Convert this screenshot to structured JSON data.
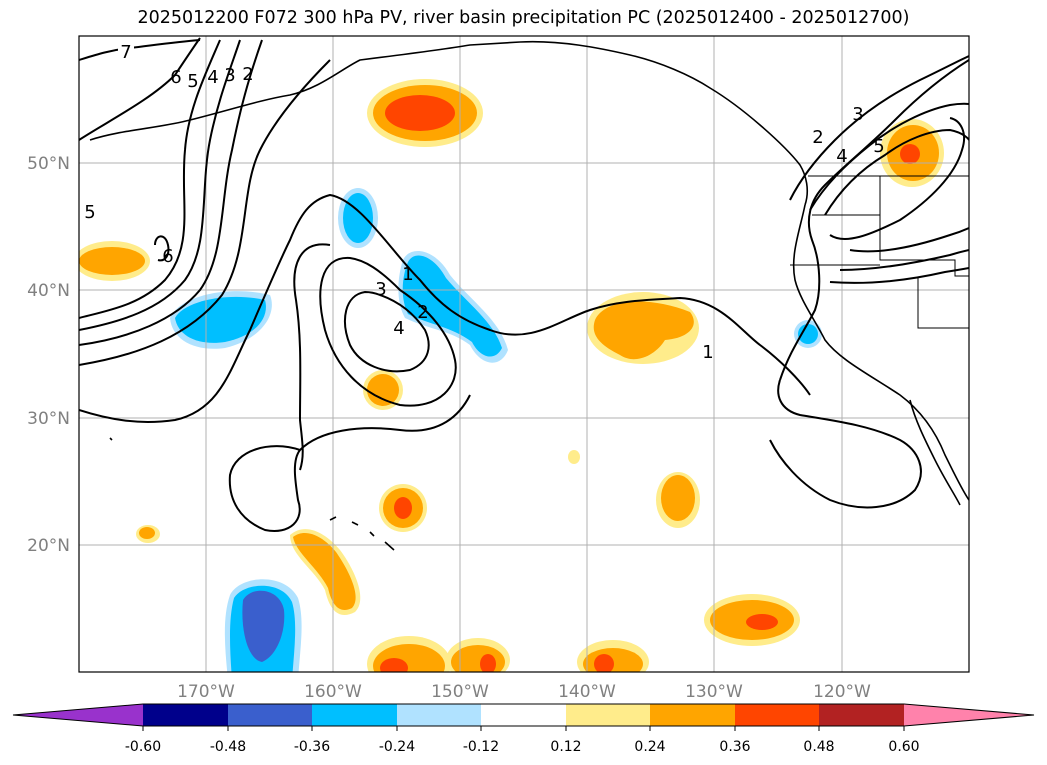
{
  "title": "2025012200 F072 300 hPa PV, river basin precipitation PC (2025012400 - 2025012700)",
  "lon_ticks": [
    "170°W",
    "160°W",
    "150°W",
    "140°W",
    "130°W",
    "120°W"
  ],
  "lat_ticks": [
    "50°N",
    "40°N",
    "30°N",
    "20°N"
  ],
  "colorbar": {
    "tick_labels": [
      "-0.60",
      "-0.48",
      "-0.36",
      "-0.24",
      "-0.12",
      "0.12",
      "0.24",
      "0.36",
      "0.48",
      "0.60"
    ],
    "colors": [
      "#9932cc",
      "#00008b",
      "#3a5fcd",
      "#00bfff",
      "#b0e2ff",
      "#ffffff",
      "#ffec8b",
      "#ffa500",
      "#ff4500",
      "#b22222",
      "#ff82ab"
    ]
  },
  "contour_labels": [
    "7",
    "6",
    "5",
    "4",
    "3",
    "2",
    "5",
    "6",
    "1",
    "2",
    "3",
    "4",
    "1",
    "2",
    "3",
    "4",
    "5"
  ],
  "colors": {
    "pos_light": "#ffec8b",
    "pos_mid": "#ffa500",
    "pos_strong": "#ff4500",
    "neg_light": "#b0e2ff",
    "neg_mid": "#00bfff",
    "neg_strong": "#3a5fcd",
    "grid": "#b0b0b0"
  }
}
